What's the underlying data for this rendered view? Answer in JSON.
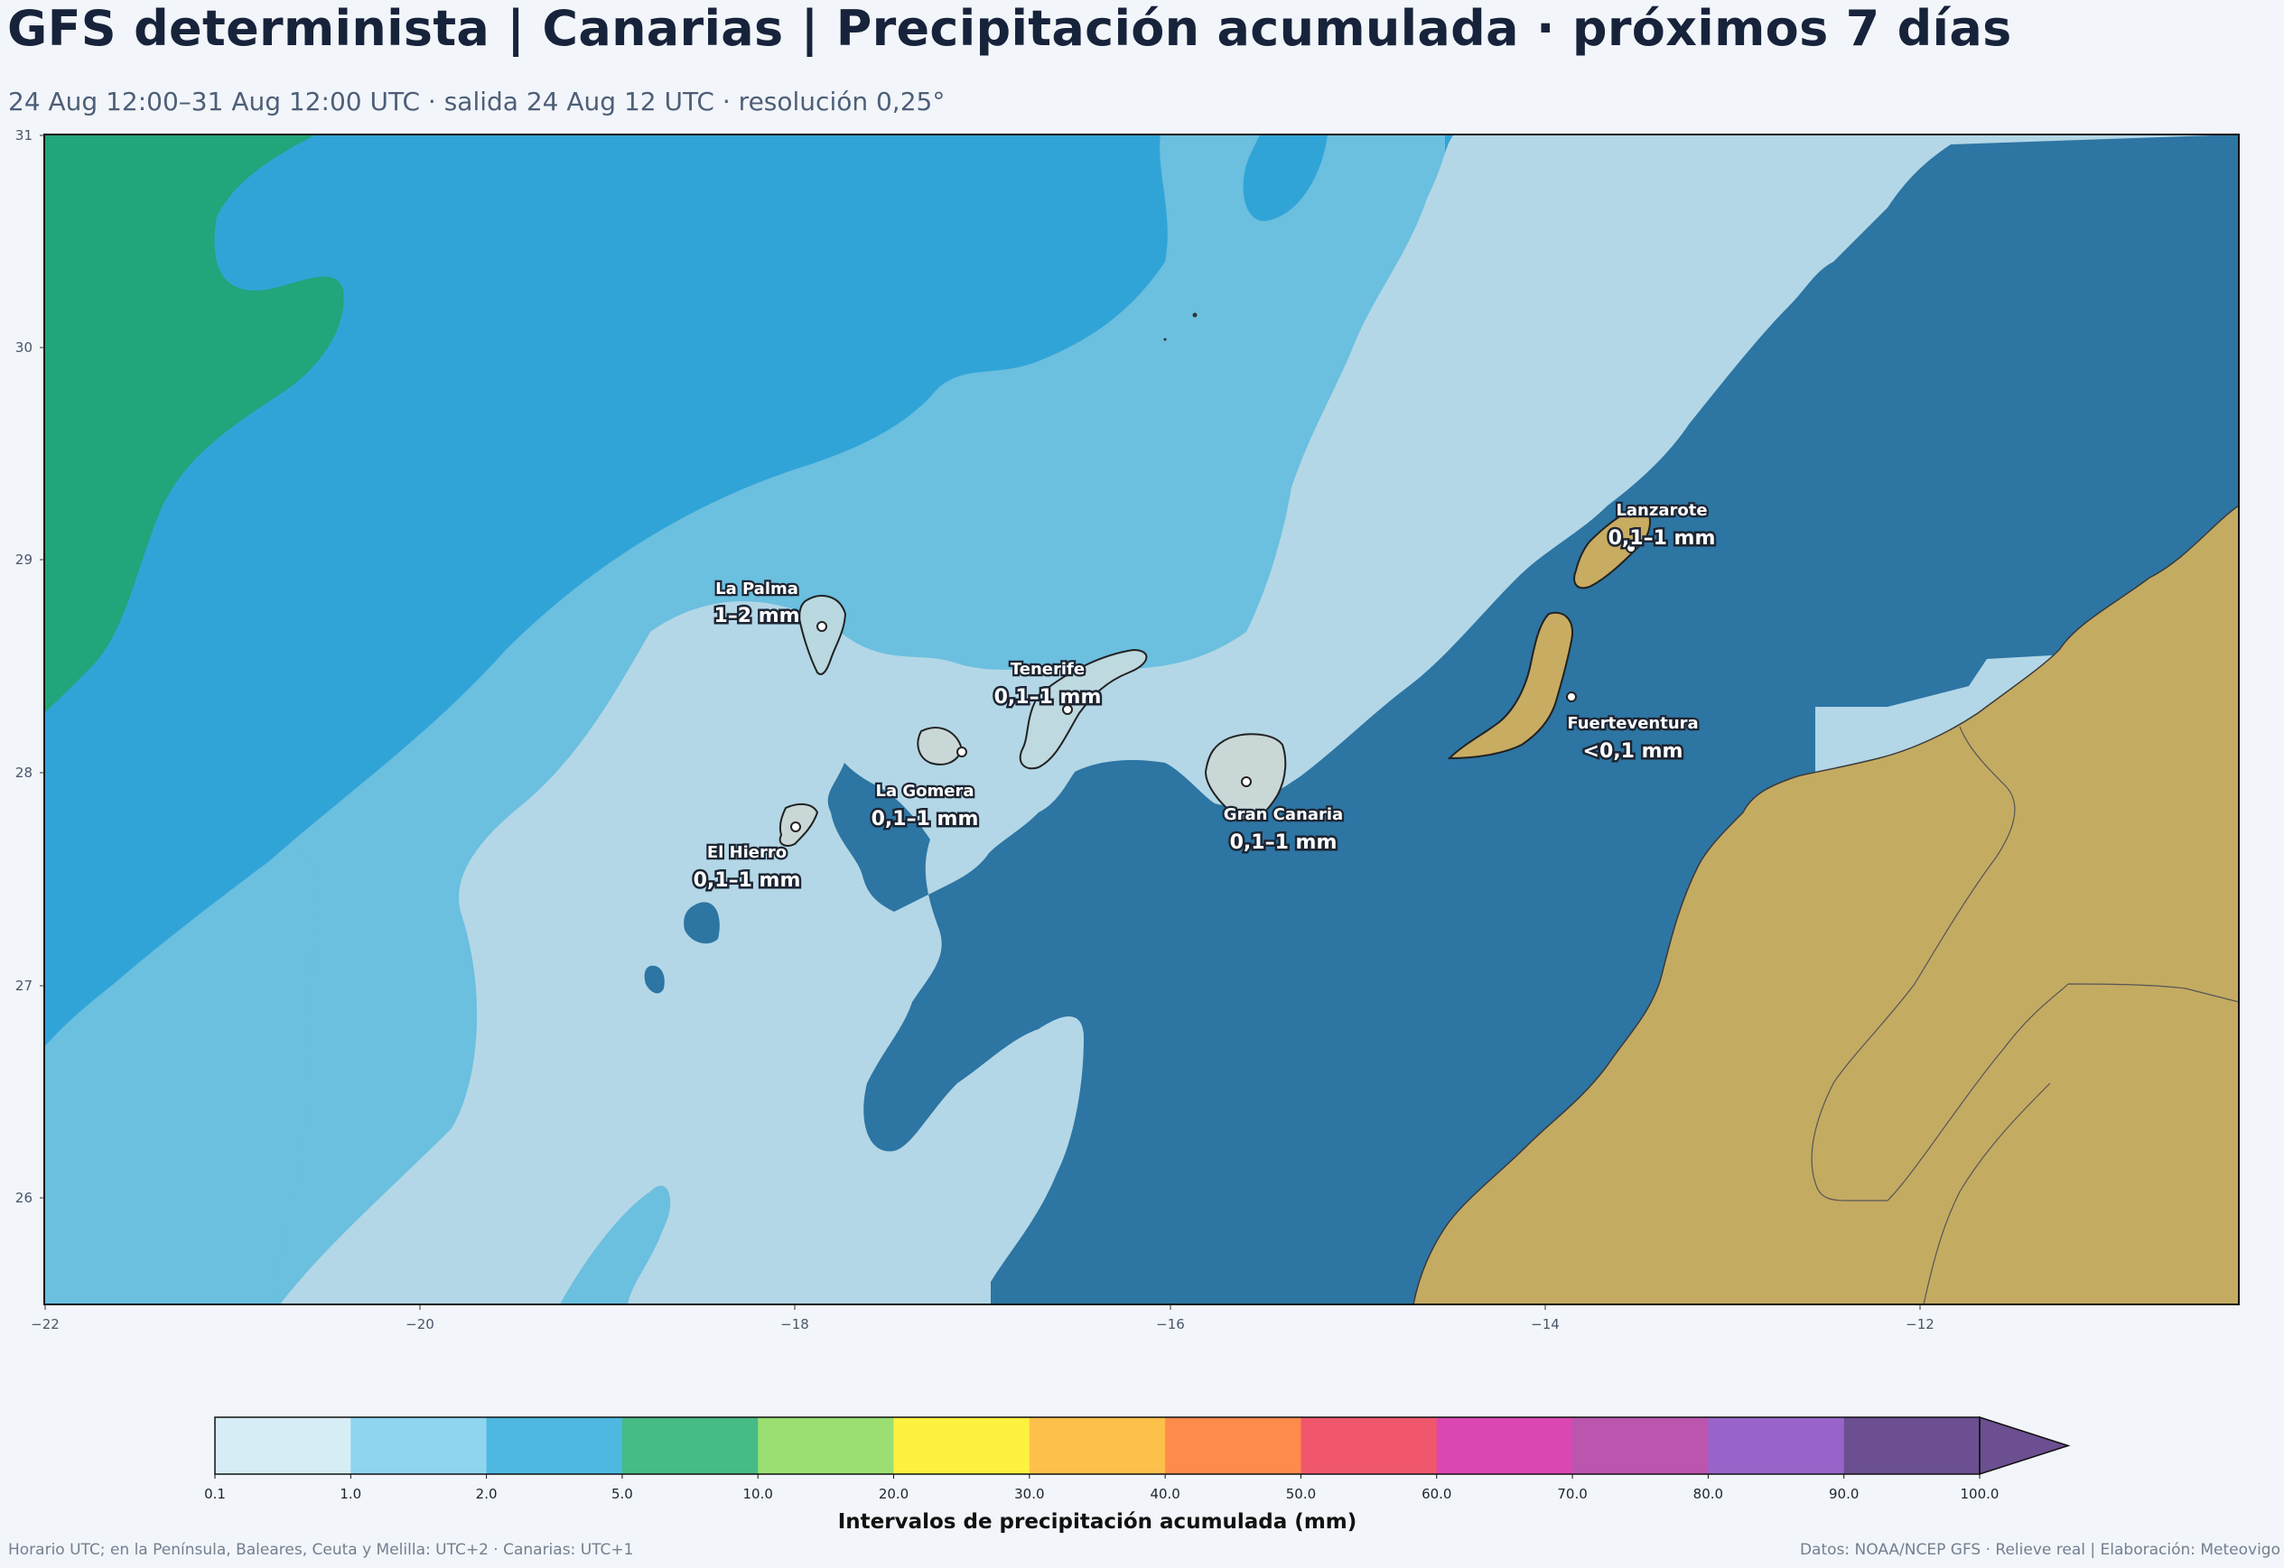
{
  "title": "GFS determinista | Canarias | Precipitación acumulada · próximos 7 días",
  "subtitle": "24 Aug 12:00–31 Aug 12:00 UTC · salida 24 Aug 12 UTC · resolución 0,25°",
  "axes": {
    "lon_ticks": [
      "−22",
      "−20",
      "−18",
      "−16",
      "−14",
      "−12"
    ],
    "lat_ticks": [
      "31",
      "30",
      "29",
      "28",
      "27",
      "26"
    ]
  },
  "islands": [
    {
      "name": "La Palma",
      "value": "1–2 mm"
    },
    {
      "name": "Tenerife",
      "value": "0,1–1 mm"
    },
    {
      "name": "La Gomera",
      "value": "0,1–1 mm"
    },
    {
      "name": "El Hierro",
      "value": "0,1–1 mm"
    },
    {
      "name": "Gran Canaria",
      "value": "0,1–1 mm"
    },
    {
      "name": "Lanzarote",
      "value": "0,1–1 mm"
    },
    {
      "name": "Fuerteventura",
      "value": "<0,1 mm"
    }
  ],
  "colorbar": {
    "label": "Intervalos de precipitación acumulada (mm)",
    "ticks": [
      "0.1",
      "1.0",
      "2.0",
      "5.0",
      "10.0",
      "20.0",
      "30.0",
      "40.0",
      "50.0",
      "60.0",
      "70.0",
      "80.0",
      "90.0",
      "100.0"
    ],
    "colors": [
      "#d6edf5",
      "#8fd5ef",
      "#4eb8e1",
      "#45bb85",
      "#9bdf72",
      "#fdf23f",
      "#fdc04a",
      "#fe8b4b",
      "#f0576d",
      "#da47b3",
      "#bb55ae",
      "#9864ca",
      "#6b4f90"
    ],
    "extend_color": "#6b4f90"
  },
  "fill_colors": {
    "very_light": "#b3d7e6",
    "light": "#6bbfdf",
    "medium": "#31a4d7",
    "green": "#21a57a",
    "dry": "#2d75a3",
    "land": "#c4ab62"
  },
  "footer_left": "Horario UTC; en la Península, Baleares, Ceuta y Melilla: UTC+2 · Canarias: UTC+1",
  "footer_right": "Datos: NOAA/NCEP GFS · Relieve real | Elaboración: Meteovigo"
}
